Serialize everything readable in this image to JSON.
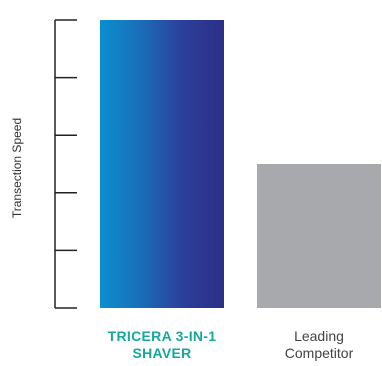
{
  "chart_data": {
    "type": "bar",
    "ylabel": "Transection Speed",
    "xlabel": "",
    "title": "",
    "categories": [
      "TRICERA 3-IN-1 SHAVER",
      "Leading Competitor"
    ],
    "category_lines": [
      [
        "TRICERA 3-IN-1",
        "SHAVER"
      ],
      [
        "Leading",
        "Competitor"
      ]
    ],
    "values": [
      5,
      2.5
    ],
    "ylim": [
      0,
      5
    ],
    "y_ticks": [
      0,
      1,
      2,
      3,
      4,
      5
    ],
    "tick_labels_shown": false,
    "grid": false,
    "legend": "none",
    "colors": {
      "bar1_gradient": [
        "#0a8fd0",
        "#1a6db8",
        "#2b3f9a",
        "#2d2f87"
      ],
      "bar2": "#a7a9ac",
      "highlight_label": "#16a89a",
      "axis": "#222222"
    }
  }
}
